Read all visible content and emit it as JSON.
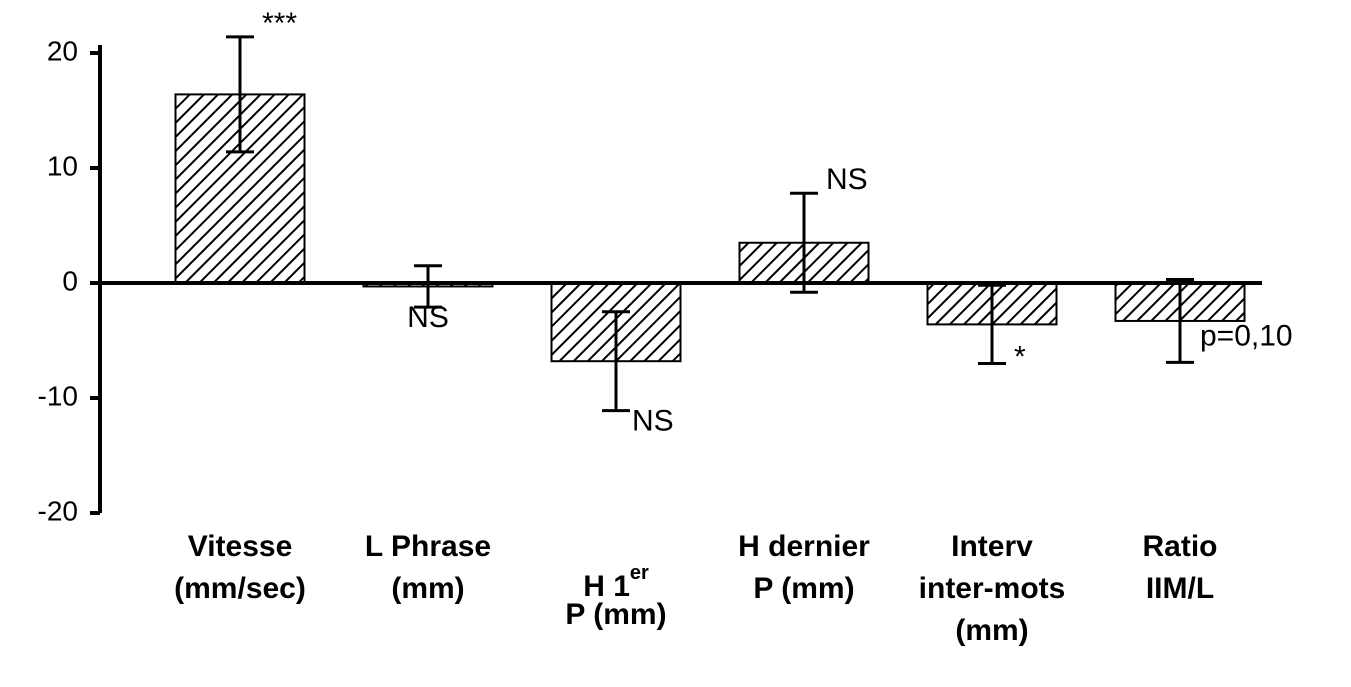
{
  "chart_data": {
    "type": "bar",
    "categories": [
      [
        "Vitesse",
        "(mm/sec)"
      ],
      [
        "L Phrase",
        "(mm)"
      ],
      [
        [
          "H 1",
          "er"
        ],
        "P (mm)"
      ],
      [
        "H dernier",
        "P (mm)"
      ],
      [
        "Interv",
        "inter-mots",
        "(mm)"
      ],
      [
        "Ratio",
        "IIM/L"
      ]
    ],
    "values": [
      16.4,
      -0.3,
      -6.8,
      3.5,
      -3.6,
      -3.3
    ],
    "errors": [
      5.0,
      1.8,
      4.3,
      4.3,
      3.4,
      3.6
    ],
    "annotations": [
      "***",
      "NS",
      "NS",
      "NS",
      "*",
      "p=0,10"
    ],
    "color": "#000000",
    "ylim": [
      -20,
      20
    ],
    "yticks": [
      -20,
      -10,
      0,
      10,
      20
    ]
  }
}
